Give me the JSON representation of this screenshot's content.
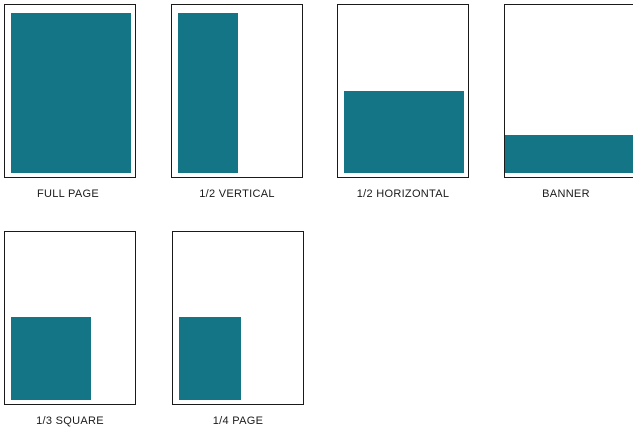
{
  "colors": {
    "ad_fill": "#137586",
    "page_border": "#1a1a1a",
    "background": "#ffffff"
  },
  "layouts": [
    {
      "id": "full-page",
      "label": "FULL PAGE"
    },
    {
      "id": "half-vertical",
      "label": "1/2 VERTICAL"
    },
    {
      "id": "half-horizontal",
      "label": "1/2 HORIZONTAL"
    },
    {
      "id": "banner",
      "label": "BANNER"
    },
    {
      "id": "third-square",
      "label": "1/3 SQUARE"
    },
    {
      "id": "quarter-page",
      "label": "1/4 PAGE"
    }
  ]
}
